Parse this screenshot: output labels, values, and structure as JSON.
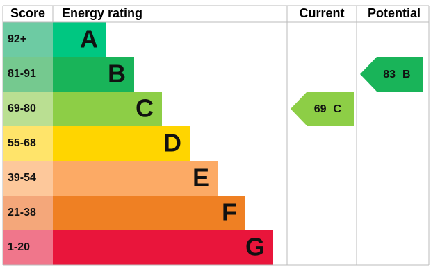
{
  "header": {
    "score": "Score",
    "rating": "Energy rating",
    "current": "Current",
    "potential": "Potential"
  },
  "bands": [
    {
      "score": "92+",
      "letter": "A",
      "color": "#00c781",
      "score_color": "#6dcba3"
    },
    {
      "score": "81-91",
      "letter": "B",
      "color": "#19b459",
      "score_color": "#75c98f"
    },
    {
      "score": "69-80",
      "letter": "C",
      "color": "#8dce46",
      "score_color": "#badf92"
    },
    {
      "score": "55-68",
      "letter": "D",
      "color": "#ffd500",
      "score_color": "#ffe46a"
    },
    {
      "score": "39-54",
      "letter": "E",
      "color": "#fcaa65",
      "score_color": "#fdc89b"
    },
    {
      "score": "21-38",
      "letter": "F",
      "color": "#ef8023",
      "score_color": "#f4a77a"
    },
    {
      "score": "1-20",
      "letter": "G",
      "color": "#e9153b",
      "score_color": "#f0768b"
    }
  ],
  "current": {
    "value": "69",
    "letter": "C"
  },
  "potential": {
    "value": "83",
    "letter": "B"
  }
}
